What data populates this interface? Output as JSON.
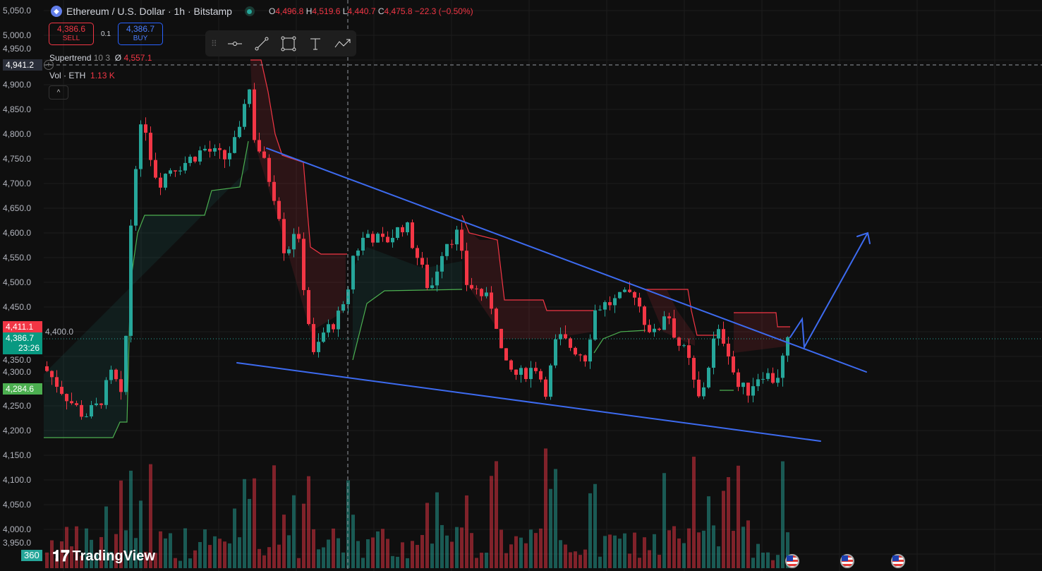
{
  "header": {
    "symbol": "Ethereum / U.S. Dollar · 1h · Bitstamp",
    "open_label": "O",
    "open": "4,496.8",
    "high_label": "H",
    "high": "4,519.6",
    "low_label": "L",
    "low": "4,440.7",
    "close_label": "C",
    "close": "4,475.8",
    "change": "−22.3 (−0.50%)"
  },
  "trade": {
    "sell_price": "4,386.6",
    "sell_label": "SELL",
    "qty": "0.1",
    "buy_price": "4,386.7",
    "buy_label": "BUY"
  },
  "indicators": {
    "supertrend_name": "Supertrend",
    "supertrend_params": "10 3",
    "supertrend_icon": "Ø",
    "supertrend_value": "4,557.1",
    "vol_name": "Vol · ETH",
    "vol_value": "1.13 K"
  },
  "toolbar": [
    "horizontal-line",
    "trend-line",
    "rectangle",
    "text",
    "path"
  ],
  "price_axis": [
    "5,050.0",
    "5,000.0",
    "4,950.0",
    "4,900.0",
    "4,850.0",
    "4,800.0",
    "4,750.0",
    "4,700.0",
    "4,650.0",
    "4,600.0",
    "4,550.0",
    "4,500.0",
    "4,450.0",
    "4,400.0",
    "4,350.0",
    "4,300.0",
    "4,250.0",
    "4,200.0",
    "4,150.0",
    "4,100.0",
    "4,050.0",
    "4,000.0",
    "3,950.0"
  ],
  "tags": {
    "crosshair": "4,941.2",
    "red": "4,411.1",
    "current": "4,386.7",
    "countdown": "23:26",
    "green": "4,284.6",
    "bottom": "360"
  },
  "logo": "TradingView",
  "colors": {
    "up": "#26a69a",
    "down": "#f23645",
    "drawing": "#3d6bf0"
  },
  "chart_data": {
    "type": "candlestick",
    "title": "Ethereum / U.S. Dollar · 1h · Bitstamp",
    "ylim": [
      3930,
      5060
    ],
    "price_path": [
      [
        62,
        4330
      ],
      [
        100,
        4260
      ],
      [
        120,
        4230
      ],
      [
        140,
        4250
      ],
      [
        160,
        4320
      ],
      [
        175,
        4250
      ],
      [
        185,
        4600
      ],
      [
        195,
        4780
      ],
      [
        205,
        4830
      ],
      [
        215,
        4750
      ],
      [
        225,
        4700
      ],
      [
        240,
        4730
      ],
      [
        260,
        4740
      ],
      [
        290,
        4770
      ],
      [
        320,
        4750
      ],
      [
        340,
        4800
      ],
      [
        352,
        4920
      ],
      [
        360,
        4800
      ],
      [
        380,
        4720
      ],
      [
        395,
        4650
      ],
      [
        405,
        4550
      ],
      [
        420,
        4620
      ],
      [
        435,
        4450
      ],
      [
        445,
        4350
      ],
      [
        460,
        4400
      ],
      [
        475,
        4420
      ],
      [
        490,
        4450
      ],
      [
        500,
        4550
      ],
      [
        520,
        4600
      ],
      [
        545,
        4580
      ],
      [
        575,
        4620
      ],
      [
        600,
        4520
      ],
      [
        610,
        4480
      ],
      [
        630,
        4580
      ],
      [
        650,
        4600
      ],
      [
        660,
        4500
      ],
      [
        680,
        4480
      ],
      [
        700,
        4450
      ],
      [
        715,
        4330
      ],
      [
        735,
        4310
      ],
      [
        760,
        4330
      ],
      [
        775,
        4280
      ],
      [
        790,
        4390
      ],
      [
        810,
        4370
      ],
      [
        830,
        4350
      ],
      [
        845,
        4450
      ],
      [
        870,
        4460
      ],
      [
        900,
        4480
      ],
      [
        915,
        4420
      ],
      [
        930,
        4390
      ],
      [
        945,
        4450
      ],
      [
        960,
        4380
      ],
      [
        975,
        4350
      ],
      [
        990,
        4260
      ],
      [
        1000,
        4300
      ],
      [
        1015,
        4400
      ],
      [
        1030,
        4380
      ],
      [
        1045,
        4290
      ],
      [
        1060,
        4280
      ],
      [
        1080,
        4320
      ],
      [
        1100,
        4300
      ],
      [
        1120,
        4390
      ]
    ]
  }
}
